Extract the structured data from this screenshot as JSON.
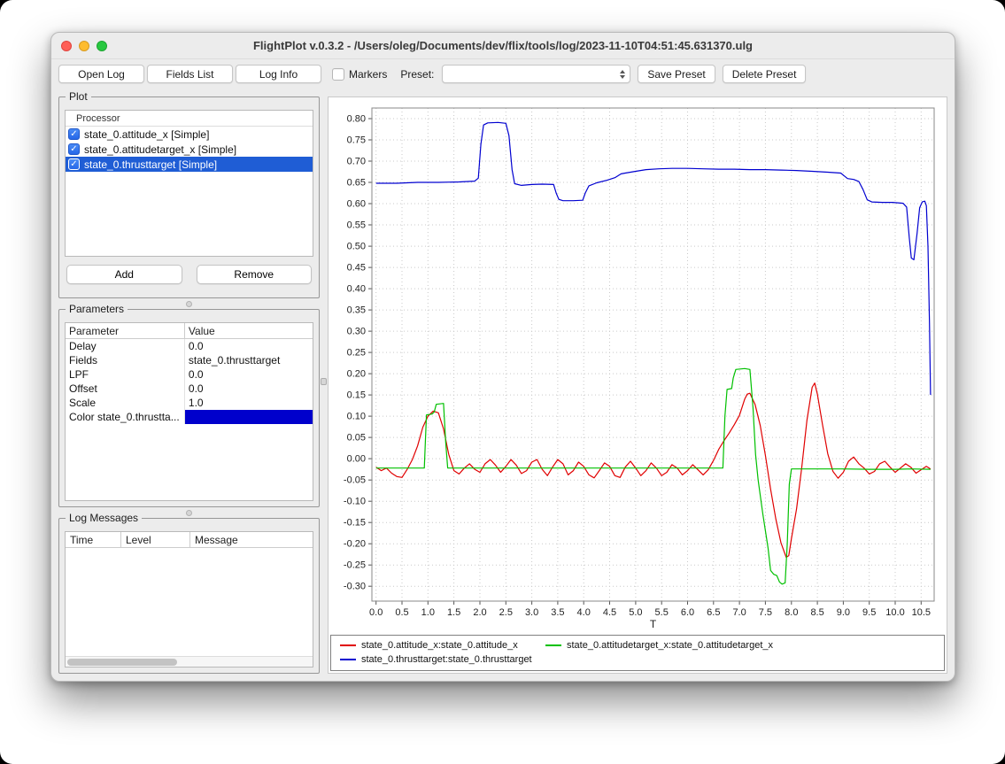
{
  "window": {
    "title": "FlightPlot v.0.3.2 - /Users/oleg/Documents/dev/flix/tools/log/2023-11-10T04:51:45.631370.ulg"
  },
  "icons": {
    "check": "✓"
  },
  "toolbar": {
    "open_log": "Open Log",
    "fields_list": "Fields List",
    "log_info": "Log Info",
    "markers_label": "Markers",
    "preset_label": "Preset:",
    "preset_value": "",
    "save_preset": "Save Preset",
    "delete_preset": "Delete Preset"
  },
  "plot_panel": {
    "title": "Plot",
    "column_header": "Processor",
    "items": [
      {
        "label": "state_0.attitude_x [Simple]",
        "checked": true,
        "selected": false
      },
      {
        "label": "state_0.attitudetarget_x [Simple]",
        "checked": true,
        "selected": false
      },
      {
        "label": "state_0.thrusttarget [Simple]",
        "checked": true,
        "selected": true
      }
    ],
    "add_label": "Add",
    "remove_label": "Remove"
  },
  "parameters_panel": {
    "title": "Parameters",
    "col_parameter": "Parameter",
    "col_value": "Value",
    "rows": [
      {
        "name": "Delay",
        "value": "0.0"
      },
      {
        "name": "Fields",
        "value": "state_0.thrusttarget"
      },
      {
        "name": "LPF",
        "value": "0.0"
      },
      {
        "name": "Offset",
        "value": "0.0"
      },
      {
        "name": "Scale",
        "value": "1.0"
      },
      {
        "name": "Color state_0.thrustta...",
        "value": "",
        "swatch": "#0000cc"
      }
    ]
  },
  "log_panel": {
    "title": "Log Messages",
    "col_time": "Time",
    "col_level": "Level",
    "col_message": "Message"
  },
  "chart_data": {
    "type": "line",
    "title": "",
    "xlabel": "T",
    "ylabel": "",
    "grid": true,
    "legend_position": "bottom",
    "xlim": [
      -0.08,
      10.75
    ],
    "ylim": [
      -0.335,
      0.825
    ],
    "xticks": [
      0.0,
      0.5,
      1.0,
      1.5,
      2.0,
      2.5,
      3.0,
      3.5,
      4.0,
      4.5,
      5.0,
      5.5,
      6.0,
      6.5,
      7.0,
      7.5,
      8.0,
      8.5,
      9.0,
      9.5,
      10.0,
      10.5
    ],
    "yticks": [
      0.8,
      0.75,
      0.7,
      0.65,
      0.6,
      0.55,
      0.5,
      0.45,
      0.4,
      0.35,
      0.3,
      0.25,
      0.2,
      0.15,
      0.1,
      0.05,
      0.0,
      -0.05,
      -0.1,
      -0.15,
      -0.2,
      -0.25,
      -0.3
    ],
    "series": [
      {
        "name": "state_0.attitude_x:state_0.attitude_x",
        "color": "#e00000",
        "points": [
          [
            0,
            -0.02
          ],
          [
            0.1,
            -0.028
          ],
          [
            0.2,
            -0.022
          ],
          [
            0.3,
            -0.034
          ],
          [
            0.4,
            -0.042
          ],
          [
            0.5,
            -0.044
          ],
          [
            0.6,
            -0.025
          ],
          [
            0.7,
            -0.002
          ],
          [
            0.8,
            0.03
          ],
          [
            0.9,
            0.074
          ],
          [
            1.0,
            0.1
          ],
          [
            1.1,
            0.112
          ],
          [
            1.2,
            0.108
          ],
          [
            1.3,
            0.07
          ],
          [
            1.4,
            0.01
          ],
          [
            1.5,
            -0.028
          ],
          [
            1.6,
            -0.036
          ],
          [
            1.7,
            -0.022
          ],
          [
            1.8,
            -0.012
          ],
          [
            1.9,
            -0.025
          ],
          [
            2.0,
            -0.032
          ],
          [
            2.1,
            -0.012
          ],
          [
            2.2,
            -0.002
          ],
          [
            2.3,
            -0.015
          ],
          [
            2.4,
            -0.032
          ],
          [
            2.5,
            -0.018
          ],
          [
            2.6,
            -0.002
          ],
          [
            2.7,
            -0.015
          ],
          [
            2.8,
            -0.035
          ],
          [
            2.9,
            -0.028
          ],
          [
            3.0,
            -0.008
          ],
          [
            3.1,
            -0.002
          ],
          [
            3.2,
            -0.025
          ],
          [
            3.3,
            -0.04
          ],
          [
            3.4,
            -0.02
          ],
          [
            3.5,
            -0.002
          ],
          [
            3.6,
            -0.012
          ],
          [
            3.7,
            -0.038
          ],
          [
            3.8,
            -0.028
          ],
          [
            3.9,
            -0.008
          ],
          [
            4.0,
            -0.018
          ],
          [
            4.1,
            -0.038
          ],
          [
            4.2,
            -0.045
          ],
          [
            4.3,
            -0.028
          ],
          [
            4.4,
            -0.01
          ],
          [
            4.5,
            -0.018
          ],
          [
            4.6,
            -0.04
          ],
          [
            4.7,
            -0.044
          ],
          [
            4.8,
            -0.02
          ],
          [
            4.9,
            -0.006
          ],
          [
            5.0,
            -0.022
          ],
          [
            5.1,
            -0.04
          ],
          [
            5.2,
            -0.028
          ],
          [
            5.3,
            -0.01
          ],
          [
            5.4,
            -0.022
          ],
          [
            5.5,
            -0.04
          ],
          [
            5.6,
            -0.032
          ],
          [
            5.7,
            -0.014
          ],
          [
            5.8,
            -0.022
          ],
          [
            5.9,
            -0.038
          ],
          [
            6.0,
            -0.028
          ],
          [
            6.1,
            -0.014
          ],
          [
            6.2,
            -0.026
          ],
          [
            6.3,
            -0.038
          ],
          [
            6.4,
            -0.026
          ],
          [
            6.5,
            -0.004
          ],
          [
            6.6,
            0.022
          ],
          [
            6.7,
            0.042
          ],
          [
            6.8,
            0.06
          ],
          [
            6.9,
            0.08
          ],
          [
            7.0,
            0.102
          ],
          [
            7.1,
            0.14
          ],
          [
            7.15,
            0.152
          ],
          [
            7.2,
            0.154
          ],
          [
            7.3,
            0.128
          ],
          [
            7.4,
            0.078
          ],
          [
            7.5,
            0.008
          ],
          [
            7.6,
            -0.072
          ],
          [
            7.7,
            -0.142
          ],
          [
            7.8,
            -0.198
          ],
          [
            7.9,
            -0.232
          ],
          [
            7.95,
            -0.228
          ],
          [
            8.0,
            -0.188
          ],
          [
            8.1,
            -0.118
          ],
          [
            8.2,
            -0.02
          ],
          [
            8.3,
            0.09
          ],
          [
            8.4,
            0.168
          ],
          [
            8.45,
            0.178
          ],
          [
            8.5,
            0.152
          ],
          [
            8.6,
            0.08
          ],
          [
            8.7,
            0.012
          ],
          [
            8.8,
            -0.03
          ],
          [
            8.9,
            -0.046
          ],
          [
            9.0,
            -0.032
          ],
          [
            9.1,
            -0.006
          ],
          [
            9.2,
            0.004
          ],
          [
            9.3,
            -0.012
          ],
          [
            9.4,
            -0.022
          ],
          [
            9.5,
            -0.036
          ],
          [
            9.6,
            -0.03
          ],
          [
            9.7,
            -0.012
          ],
          [
            9.8,
            -0.006
          ],
          [
            9.9,
            -0.02
          ],
          [
            10.0,
            -0.032
          ],
          [
            10.1,
            -0.022
          ],
          [
            10.2,
            -0.012
          ],
          [
            10.3,
            -0.02
          ],
          [
            10.4,
            -0.034
          ],
          [
            10.5,
            -0.026
          ],
          [
            10.6,
            -0.018
          ],
          [
            10.68,
            -0.024
          ]
        ]
      },
      {
        "name": "state_0.attitudetarget_x:state_0.attitudetarget_x",
        "color": "#00c000",
        "points": [
          [
            0,
            -0.022
          ],
          [
            0.5,
            -0.022
          ],
          [
            0.93,
            -0.022
          ],
          [
            0.97,
            0.103
          ],
          [
            1.08,
            0.105
          ],
          [
            1.12,
            0.11
          ],
          [
            1.16,
            0.128
          ],
          [
            1.3,
            0.13
          ],
          [
            1.34,
            0.04
          ],
          [
            1.38,
            -0.022
          ],
          [
            2.0,
            -0.022
          ],
          [
            3.0,
            -0.022
          ],
          [
            4.0,
            -0.022
          ],
          [
            5.0,
            -0.022
          ],
          [
            6.0,
            -0.022
          ],
          [
            6.68,
            -0.022
          ],
          [
            6.72,
            0.1
          ],
          [
            6.76,
            0.163
          ],
          [
            6.85,
            0.165
          ],
          [
            6.88,
            0.19
          ],
          [
            6.93,
            0.21
          ],
          [
            7.1,
            0.212
          ],
          [
            7.2,
            0.21
          ],
          [
            7.26,
            0.12
          ],
          [
            7.31,
            0.01
          ],
          [
            7.36,
            -0.05
          ],
          [
            7.45,
            -0.13
          ],
          [
            7.55,
            -0.21
          ],
          [
            7.6,
            -0.263
          ],
          [
            7.66,
            -0.272
          ],
          [
            7.72,
            -0.275
          ],
          [
            7.77,
            -0.29
          ],
          [
            7.82,
            -0.295
          ],
          [
            7.88,
            -0.292
          ],
          [
            7.92,
            -0.2
          ],
          [
            7.96,
            -0.06
          ],
          [
            8.0,
            -0.024
          ],
          [
            8.5,
            -0.024
          ],
          [
            9.0,
            -0.024
          ],
          [
            9.5,
            -0.025
          ],
          [
            10.0,
            -0.025
          ],
          [
            10.3,
            -0.024
          ],
          [
            10.68,
            -0.025
          ]
        ]
      },
      {
        "name": "state_0.thrusttarget:state_0.thrusttarget",
        "color": "#0000d0",
        "points": [
          [
            0,
            0.648
          ],
          [
            0.4,
            0.648
          ],
          [
            0.8,
            0.65
          ],
          [
            1.2,
            0.65
          ],
          [
            1.6,
            0.651
          ],
          [
            1.9,
            0.653
          ],
          [
            1.97,
            0.66
          ],
          [
            2.02,
            0.74
          ],
          [
            2.07,
            0.785
          ],
          [
            2.15,
            0.79
          ],
          [
            2.35,
            0.791
          ],
          [
            2.5,
            0.789
          ],
          [
            2.56,
            0.76
          ],
          [
            2.62,
            0.68
          ],
          [
            2.67,
            0.647
          ],
          [
            2.8,
            0.643
          ],
          [
            3.0,
            0.645
          ],
          [
            3.2,
            0.646
          ],
          [
            3.42,
            0.645
          ],
          [
            3.47,
            0.625
          ],
          [
            3.52,
            0.61
          ],
          [
            3.6,
            0.607
          ],
          [
            3.8,
            0.607
          ],
          [
            3.98,
            0.608
          ],
          [
            4.03,
            0.625
          ],
          [
            4.1,
            0.642
          ],
          [
            4.25,
            0.649
          ],
          [
            4.45,
            0.655
          ],
          [
            4.6,
            0.661
          ],
          [
            4.72,
            0.67
          ],
          [
            4.8,
            0.672
          ],
          [
            5.0,
            0.676
          ],
          [
            5.2,
            0.68
          ],
          [
            5.45,
            0.682
          ],
          [
            5.7,
            0.683
          ],
          [
            6.0,
            0.683
          ],
          [
            6.3,
            0.682
          ],
          [
            6.6,
            0.681
          ],
          [
            6.9,
            0.681
          ],
          [
            7.2,
            0.68
          ],
          [
            7.5,
            0.68
          ],
          [
            7.8,
            0.679
          ],
          [
            8.1,
            0.678
          ],
          [
            8.4,
            0.676
          ],
          [
            8.7,
            0.674
          ],
          [
            8.95,
            0.672
          ],
          [
            9.02,
            0.665
          ],
          [
            9.08,
            0.659
          ],
          [
            9.2,
            0.657
          ],
          [
            9.3,
            0.652
          ],
          [
            9.38,
            0.633
          ],
          [
            9.46,
            0.609
          ],
          [
            9.55,
            0.604
          ],
          [
            9.75,
            0.603
          ],
          [
            9.95,
            0.603
          ],
          [
            10.15,
            0.601
          ],
          [
            10.22,
            0.592
          ],
          [
            10.27,
            0.52
          ],
          [
            10.31,
            0.472
          ],
          [
            10.36,
            0.468
          ],
          [
            10.42,
            0.53
          ],
          [
            10.47,
            0.59
          ],
          [
            10.52,
            0.604
          ],
          [
            10.57,
            0.606
          ],
          [
            10.6,
            0.595
          ],
          [
            10.63,
            0.5
          ],
          [
            10.66,
            0.32
          ],
          [
            10.68,
            0.15
          ]
        ]
      }
    ]
  }
}
